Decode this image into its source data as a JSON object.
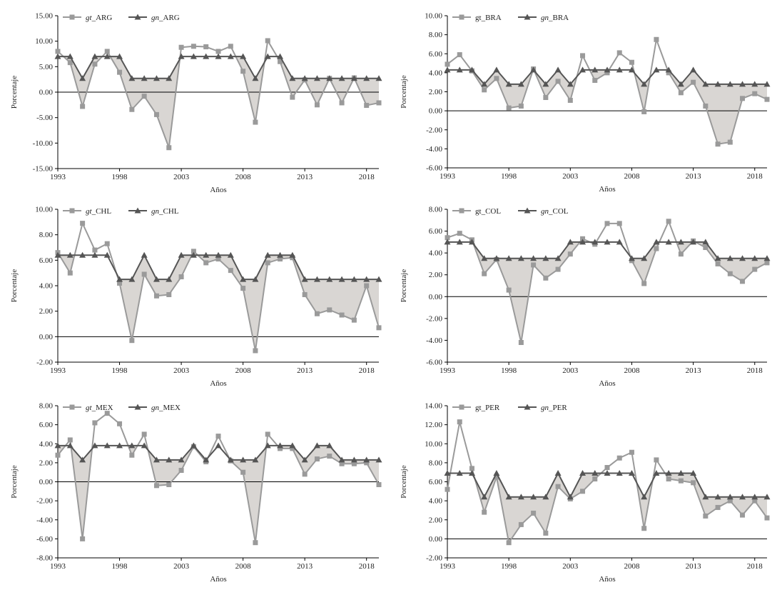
{
  "colors": {
    "gt": "#9a9a9a",
    "gn": "#555555",
    "fill": "#d9d6d3",
    "axis": "#000000"
  },
  "chart_data": [
    {
      "type": "line",
      "xlabel": "Años",
      "ylabel": "Porcentaje",
      "ylim": [
        -15,
        15
      ],
      "yticks": [
        -15,
        -10,
        -5,
        0,
        5,
        10,
        15
      ],
      "ytick_labels": [
        "-15.00",
        "-10.00",
        "-5.00",
        "0.00",
        "5.00",
        "10.00",
        "15.00"
      ],
      "x": [
        1993,
        1994,
        1995,
        1996,
        1997,
        1998,
        1999,
        2000,
        2001,
        2002,
        2003,
        2004,
        2005,
        2006,
        2007,
        2008,
        2009,
        2010,
        2011,
        2012,
        2013,
        2014,
        2015,
        2016,
        2017,
        2018,
        2019
      ],
      "xtick_labels": [
        "1993",
        "1998",
        "2003",
        "2008",
        "2013",
        "2018"
      ],
      "legend_italic": true,
      "series": [
        {
          "name": "gt_ARG",
          "name_prefix": "gt",
          "name_suffix": "_ARG",
          "marker": "square",
          "values": [
            8.0,
            5.8,
            -2.8,
            5.5,
            8.0,
            3.9,
            -3.4,
            -0.8,
            -4.4,
            -10.9,
            8.8,
            9.0,
            8.9,
            8.0,
            9.0,
            4.1,
            -5.9,
            10.1,
            6.0,
            -1.0,
            2.4,
            -2.5,
            2.7,
            -2.1,
            2.8,
            -2.6,
            -2.1
          ]
        },
        {
          "name": "gn_ARG",
          "name_prefix": "gn",
          "name_suffix": "_ARG",
          "marker": "triangle",
          "values": [
            7.0,
            7.0,
            2.7,
            7.0,
            7.0,
            7.0,
            2.7,
            2.7,
            2.7,
            2.7,
            7.0,
            7.0,
            7.0,
            7.0,
            7.0,
            7.0,
            2.7,
            7.0,
            7.0,
            2.7,
            2.7,
            2.7,
            2.7,
            2.7,
            2.7,
            2.7,
            2.7
          ]
        }
      ]
    },
    {
      "type": "line",
      "xlabel": "Años",
      "ylabel": "Porcentaje",
      "ylim": [
        -6,
        10
      ],
      "yticks": [
        -6,
        -4,
        -2,
        0,
        2,
        4,
        6,
        8,
        10
      ],
      "ytick_labels": [
        "-6.00",
        "-4.00",
        "-2.00",
        "0.00",
        "2.00",
        "4.00",
        "6.00",
        "8.00",
        "10.00"
      ],
      "x": [
        1993,
        1994,
        1995,
        1996,
        1997,
        1998,
        1999,
        2000,
        2001,
        2002,
        2003,
        2004,
        2005,
        2006,
        2007,
        2008,
        2009,
        2010,
        2011,
        2012,
        2013,
        2014,
        2015,
        2016,
        2017,
        2018,
        2019
      ],
      "xtick_labels": [
        "1993",
        "1998",
        "2003",
        "2008",
        "2013",
        "2018"
      ],
      "legend_italic": false,
      "series": [
        {
          "name": "gt_BRA",
          "name_prefix": "gt",
          "name_suffix": "_BRA",
          "marker": "square",
          "values": [
            4.9,
            5.9,
            4.2,
            2.2,
            3.4,
            0.3,
            0.5,
            4.4,
            1.4,
            3.1,
            1.1,
            5.8,
            3.2,
            4.0,
            6.1,
            5.1,
            -0.1,
            7.5,
            4.0,
            1.9,
            3.0,
            0.5,
            -3.5,
            -3.3,
            1.3,
            1.8,
            1.2
          ]
        },
        {
          "name": "gn_BRA",
          "name_prefix": "gn",
          "name_suffix": "_BRA",
          "marker": "triangle",
          "values": [
            4.3,
            4.3,
            4.3,
            2.8,
            4.3,
            2.8,
            2.8,
            4.3,
            2.8,
            4.3,
            2.8,
            4.3,
            4.3,
            4.3,
            4.3,
            4.3,
            2.8,
            4.3,
            4.3,
            2.8,
            4.3,
            2.8,
            2.8,
            2.8,
            2.8,
            2.8,
            2.8
          ]
        }
      ]
    },
    {
      "type": "line",
      "xlabel": "Años",
      "ylabel": "Porcentaje",
      "ylim": [
        -2,
        10
      ],
      "yticks": [
        -2,
        0,
        2,
        4,
        6,
        8,
        10
      ],
      "ytick_labels": [
        "-2.00",
        "0.00",
        "2.00",
        "4.00",
        "6.00",
        "8.00",
        "10.00"
      ],
      "x": [
        1993,
        1994,
        1995,
        1996,
        1997,
        1998,
        1999,
        2000,
        2001,
        2002,
        2003,
        2004,
        2005,
        2006,
        2007,
        2008,
        2009,
        2010,
        2011,
        2012,
        2013,
        2014,
        2015,
        2016,
        2017,
        2018,
        2019
      ],
      "xtick_labels": [
        "1993",
        "1998",
        "2003",
        "2008",
        "2013",
        "2018"
      ],
      "legend_italic": true,
      "series": [
        {
          "name": "gt_CHL",
          "name_prefix": "gt",
          "name_suffix": "_CHL",
          "marker": "square",
          "values": [
            6.6,
            5.0,
            8.9,
            6.8,
            7.3,
            4.2,
            -0.3,
            4.9,
            3.2,
            3.3,
            4.7,
            6.7,
            5.8,
            6.1,
            5.2,
            3.8,
            -1.1,
            5.8,
            6.1,
            6.2,
            3.3,
            1.8,
            2.1,
            1.7,
            1.3,
            4.0,
            0.7
          ]
        },
        {
          "name": "gn_CHL",
          "name_prefix": "gn",
          "name_suffix": "_CHL",
          "marker": "triangle",
          "values": [
            6.4,
            6.4,
            6.4,
            6.4,
            6.4,
            4.5,
            4.5,
            6.4,
            4.5,
            4.5,
            6.4,
            6.4,
            6.4,
            6.4,
            6.4,
            4.5,
            4.5,
            6.4,
            6.4,
            6.4,
            4.5,
            4.5,
            4.5,
            4.5,
            4.5,
            4.5,
            4.5
          ]
        }
      ]
    },
    {
      "type": "line",
      "xlabel": "Años",
      "ylabel": "Porcentaje",
      "ylim": [
        -6,
        8
      ],
      "yticks": [
        -6,
        -4,
        -2,
        0,
        2,
        4,
        6,
        8
      ],
      "ytick_labels": [
        "-6.00",
        "-4.00",
        "-2.00",
        "0.00",
        "2.00",
        "4.00",
        "6.00",
        "8.00"
      ],
      "x": [
        1993,
        1994,
        1995,
        1996,
        1997,
        1998,
        1999,
        2000,
        2001,
        2002,
        2003,
        2004,
        2005,
        2006,
        2007,
        2008,
        2009,
        2010,
        2011,
        2012,
        2013,
        2014,
        2015,
        2016,
        2017,
        2018,
        2019
      ],
      "xtick_labels": [
        "1993",
        "1998",
        "2003",
        "2008",
        "2013",
        "2018"
      ],
      "legend_italic": false,
      "series": [
        {
          "name": "gt_COL",
          "name_prefix": "gt",
          "name_suffix": "_COL",
          "marker": "square",
          "values": [
            5.4,
            5.8,
            5.2,
            2.1,
            3.4,
            0.6,
            -4.2,
            2.9,
            1.7,
            2.5,
            3.9,
            5.3,
            4.8,
            6.7,
            6.7,
            3.3,
            1.2,
            4.4,
            6.9,
            3.9,
            5.1,
            4.5,
            3.0,
            2.1,
            1.4,
            2.5,
            3.1
          ]
        },
        {
          "name": "gn_COL",
          "name_prefix": "gn",
          "name_suffix": "_COL",
          "marker": "triangle",
          "values": [
            5.0,
            5.0,
            5.0,
            3.5,
            3.5,
            3.5,
            3.5,
            3.5,
            3.5,
            3.5,
            5.0,
            5.0,
            5.0,
            5.0,
            5.0,
            3.5,
            3.5,
            5.0,
            5.0,
            5.0,
            5.0,
            5.0,
            3.5,
            3.5,
            3.5,
            3.5,
            3.5
          ]
        }
      ]
    },
    {
      "type": "line",
      "xlabel": "Años",
      "ylabel": "Porcentaje",
      "ylim": [
        -8,
        8
      ],
      "yticks": [
        -8,
        -6,
        -4,
        -2,
        0,
        2,
        4,
        6,
        8
      ],
      "ytick_labels": [
        "-8.00",
        "-6.00",
        "-4.00",
        "-2.00",
        "0.00",
        "2.00",
        "4.00",
        "6.00",
        "8.00"
      ],
      "x": [
        1993,
        1994,
        1995,
        1996,
        1997,
        1998,
        1999,
        2000,
        2001,
        2002,
        2003,
        2004,
        2005,
        2006,
        2007,
        2008,
        2009,
        2010,
        2011,
        2012,
        2013,
        2014,
        2015,
        2016,
        2017,
        2018,
        2019
      ],
      "xtick_labels": [
        "1993",
        "1998",
        "2003",
        "2008",
        "2013",
        "2018"
      ],
      "legend_italic": true,
      "series": [
        {
          "name": "gt_MEX",
          "name_prefix": "gt",
          "name_suffix": "_MEX",
          "marker": "square",
          "values": [
            2.8,
            4.4,
            -6.0,
            6.2,
            7.2,
            6.1,
            2.8,
            5.0,
            -0.4,
            -0.3,
            1.2,
            3.7,
            2.1,
            4.8,
            2.2,
            1.0,
            -6.4,
            5.0,
            3.5,
            3.5,
            0.8,
            2.4,
            2.7,
            1.9,
            1.9,
            2.0,
            -0.3
          ]
        },
        {
          "name": "gn_MEX",
          "name_prefix": "gn",
          "name_suffix": "_MEX",
          "marker": "triangle",
          "values": [
            3.8,
            3.8,
            2.3,
            3.8,
            3.8,
            3.8,
            3.8,
            3.8,
            2.3,
            2.3,
            2.3,
            3.8,
            2.3,
            3.8,
            2.3,
            2.3,
            2.3,
            3.8,
            3.8,
            3.8,
            2.3,
            3.8,
            3.8,
            2.3,
            2.3,
            2.3,
            2.3
          ]
        }
      ]
    },
    {
      "type": "line",
      "xlabel": "Años",
      "ylabel": "Porcentaje",
      "ylim": [
        -2,
        14
      ],
      "yticks": [
        -2,
        0,
        2,
        4,
        6,
        8,
        10,
        12,
        14
      ],
      "ytick_labels": [
        "-2.00",
        "0.00",
        "2.00",
        "4.00",
        "6.00",
        "8.00",
        "10.00",
        "12.00",
        "14.00"
      ],
      "x": [
        1993,
        1994,
        1995,
        1996,
        1997,
        1998,
        1999,
        2000,
        2001,
        2002,
        2003,
        2004,
        2005,
        2006,
        2007,
        2008,
        2009,
        2010,
        2011,
        2012,
        2013,
        2014,
        2015,
        2016,
        2017,
        2018,
        2019
      ],
      "xtick_labels": [
        "1993",
        "1998",
        "2003",
        "2008",
        "2013",
        "2018"
      ],
      "legend_italic": false,
      "series": [
        {
          "name": "gt_PER",
          "name_prefix": "gt",
          "name_suffix": "_PER",
          "marker": "square",
          "values": [
            5.2,
            12.3,
            7.4,
            2.8,
            6.5,
            -0.4,
            1.5,
            2.7,
            0.6,
            5.5,
            4.2,
            5.0,
            6.3,
            7.5,
            8.5,
            9.1,
            1.1,
            8.3,
            6.3,
            6.1,
            5.9,
            2.4,
            3.3,
            4.0,
            2.5,
            4.0,
            2.2
          ]
        },
        {
          "name": "gn_PER",
          "name_prefix": "gn",
          "name_suffix": "_PER",
          "marker": "triangle",
          "values": [
            6.9,
            6.9,
            6.9,
            4.4,
            6.9,
            4.4,
            4.4,
            4.4,
            4.4,
            6.9,
            4.4,
            6.9,
            6.9,
            6.9,
            6.9,
            6.9,
            4.4,
            6.9,
            6.9,
            6.9,
            6.9,
            4.4,
            4.4,
            4.4,
            4.4,
            4.4,
            4.4
          ]
        }
      ]
    }
  ]
}
